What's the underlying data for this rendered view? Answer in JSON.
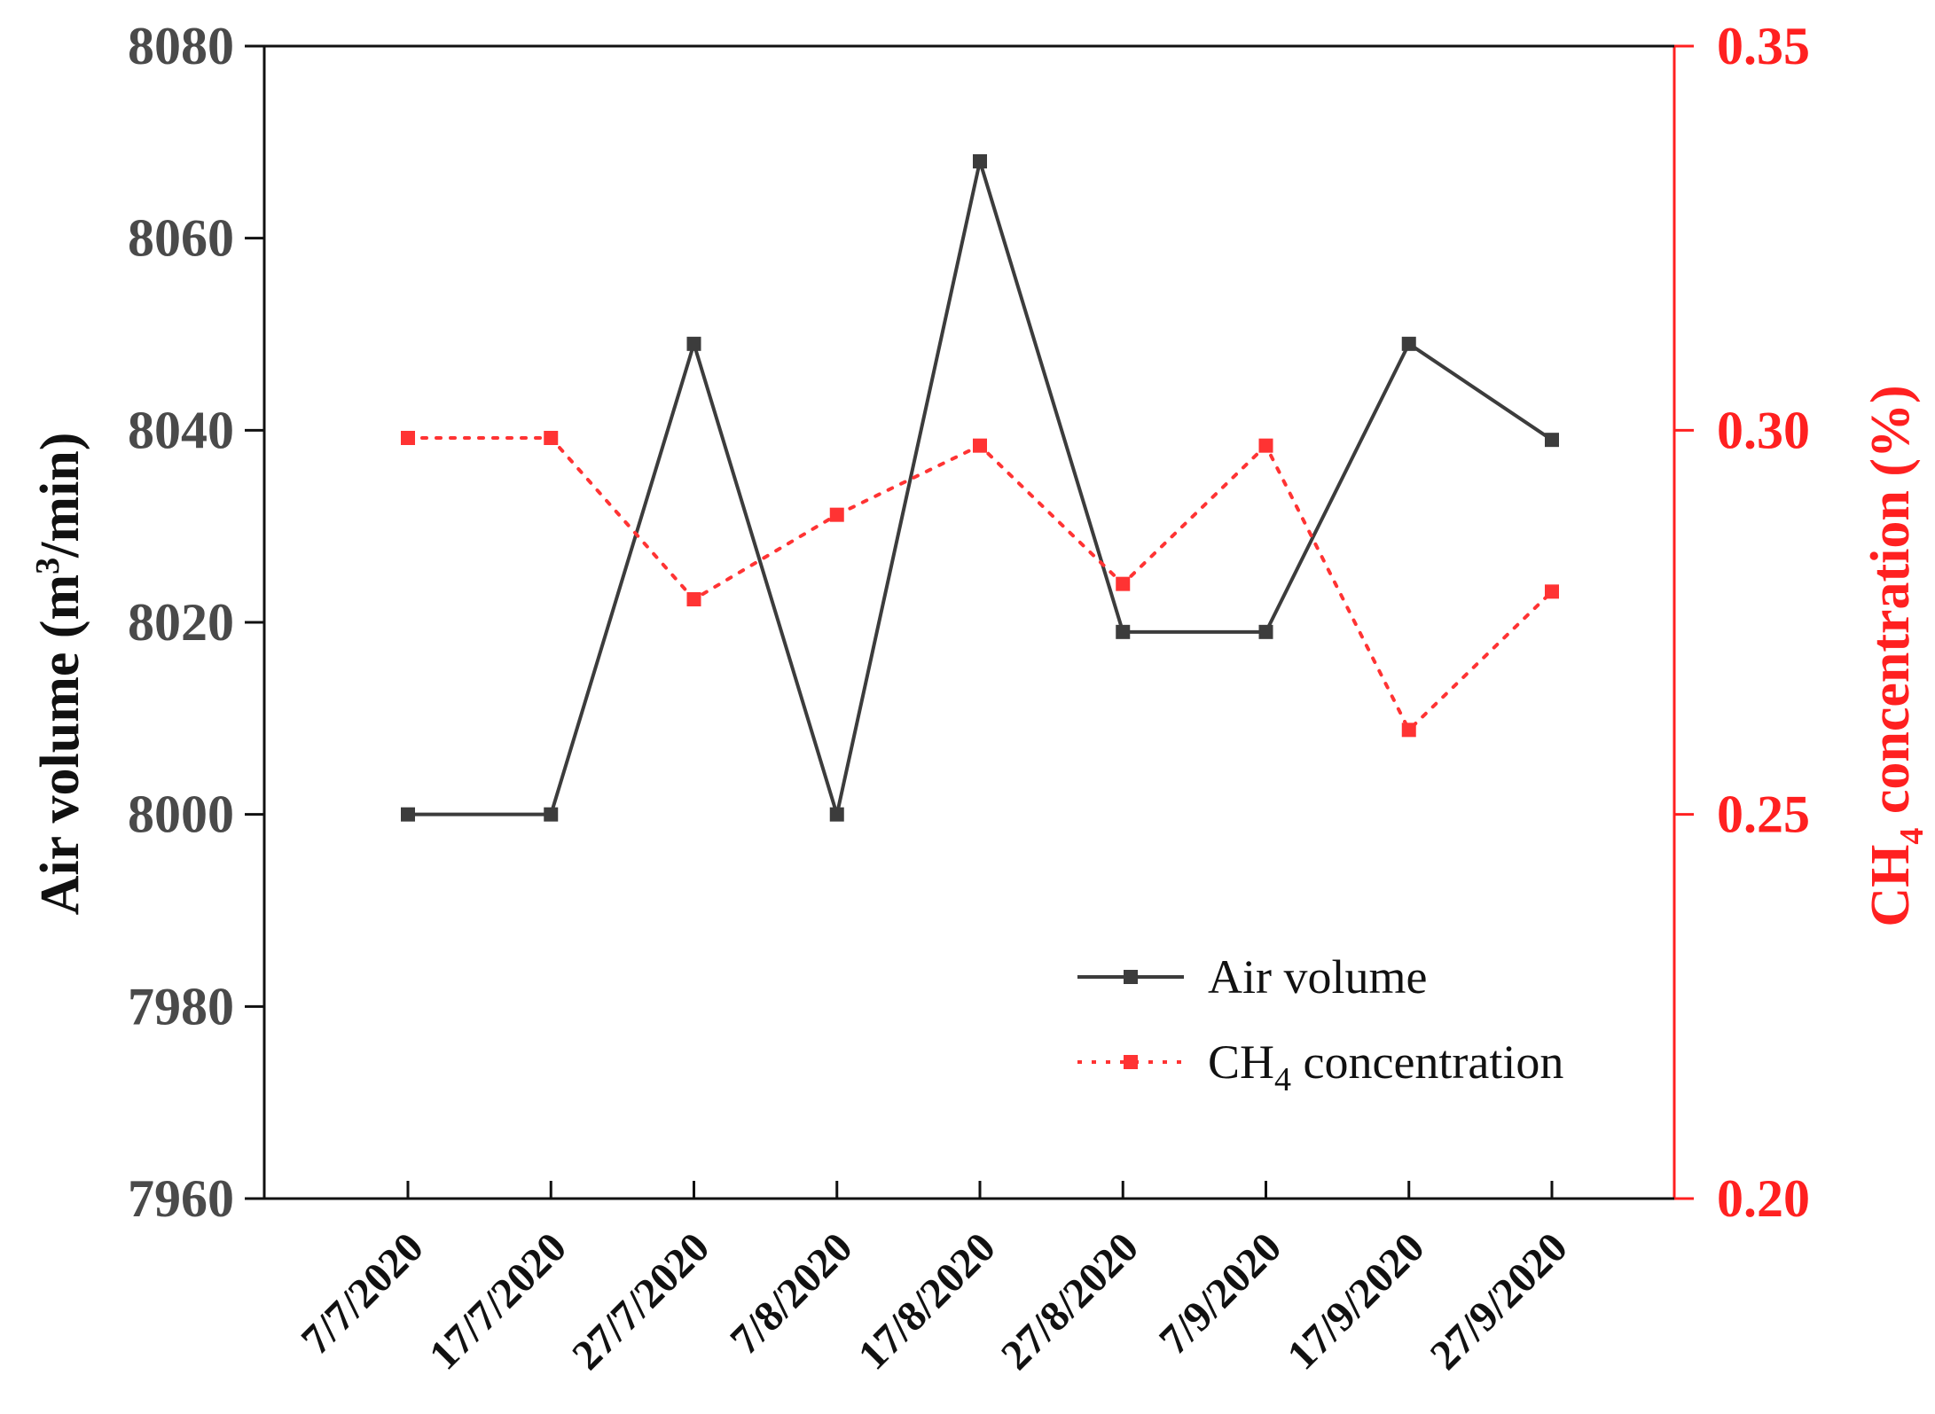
{
  "chart_data": {
    "type": "line",
    "categories": [
      "7/7/2020",
      "17/7/2020",
      "27/7/2020",
      "7/8/2020",
      "17/8/2020",
      "27/8/2020",
      "7/9/2020",
      "17/9/2020",
      "27/9/2020"
    ],
    "series": [
      {
        "name": "Air volume",
        "axis": "left",
        "style": "solid",
        "color": "#3c3c3c",
        "values": [
          8000,
          8000,
          8049,
          8000,
          8068,
          8019,
          8019,
          8049,
          8039
        ]
      },
      {
        "name": "CH4 concentration",
        "axis": "right",
        "style": "dotted",
        "color": "#ff3333",
        "values": [
          0.299,
          0.299,
          0.278,
          0.289,
          0.298,
          0.28,
          0.298,
          0.261,
          0.279
        ]
      }
    ],
    "left_axis": {
      "label_main": "Air volume (m",
      "label_sup": "3",
      "label_tail": "/min)",
      "ylim": [
        7960,
        8080
      ],
      "ticks": [
        "7960",
        "7980",
        "8000",
        "8020",
        "8040",
        "8060",
        "8080"
      ]
    },
    "right_axis": {
      "label_main": "CH",
      "label_sub": "4",
      "label_tail": " concentration (%)",
      "ylim": [
        0.2,
        0.35
      ],
      "ticks": [
        "0.20",
        "0.25",
        "0.30",
        "0.35"
      ]
    },
    "legend": {
      "position": "bottom-right",
      "entries": [
        {
          "main": "Air volume",
          "sub": "",
          "tail": ""
        },
        {
          "main": "CH",
          "sub": "4",
          "tail": " concentration"
        }
      ]
    },
    "grid": false,
    "colors": {
      "left_axis": "#3c3c3c",
      "right_axis": "#ff2020",
      "ch4_series": "#ff3333",
      "air_series": "#3c3c3c"
    }
  }
}
